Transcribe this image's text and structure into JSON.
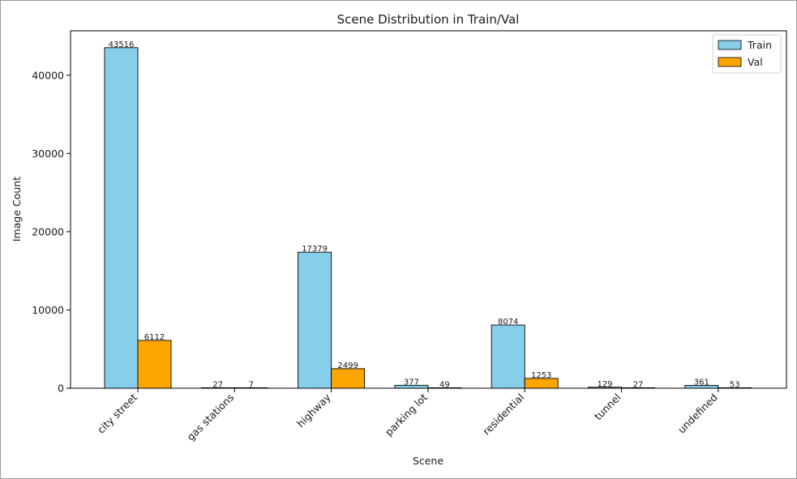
{
  "chart_data": {
    "type": "bar",
    "title": "Scene Distribution in Train/Val",
    "xlabel": "Scene",
    "ylabel": "Image Count",
    "categories": [
      "city street",
      "gas stations",
      "highway",
      "parking lot",
      "residential",
      "tunnel",
      "undefined"
    ],
    "series": [
      {
        "name": "Train",
        "color": "#87ceeb",
        "values": [
          43516,
          27,
          17379,
          377,
          8074,
          129,
          361
        ]
      },
      {
        "name": "Val",
        "color": "#ffa500",
        "values": [
          6112,
          7,
          2499,
          49,
          1253,
          27,
          53
        ]
      }
    ],
    "ylim": [
      0,
      45670
    ],
    "yticks": [
      0,
      10000,
      20000,
      30000,
      40000
    ],
    "legend_position": "top-right",
    "grid": false
  }
}
